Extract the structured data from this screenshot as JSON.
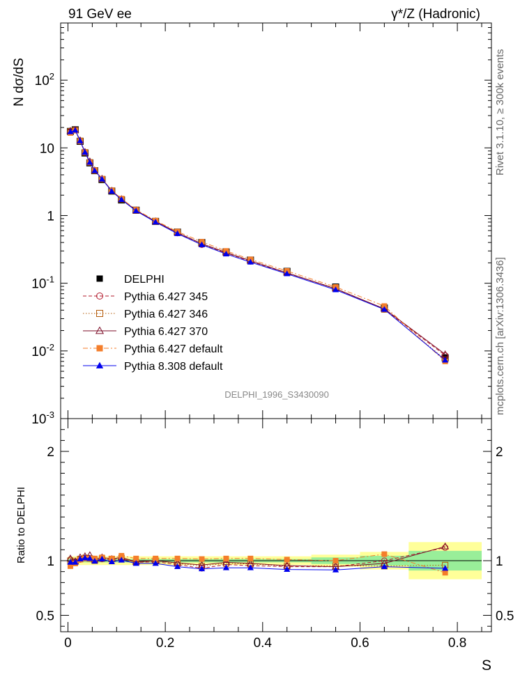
{
  "header": {
    "left_label": "91 GeV ee",
    "right_label": "γ*/Z (Hadronic)"
  },
  "side_labels": {
    "rivet": "Rivet 3.1.10, ≥ 300k events",
    "source": "mcplots.cern.ch [arXiv:1306.3436]"
  },
  "watermark": "DELPHI_1996_S3430090",
  "chart_data": [
    {
      "type": "line",
      "ylabel": "N dσ/dS",
      "yscale": "log",
      "ylim": [
        0.001,
        700
      ],
      "xlim": [
        -0.015,
        0.87
      ],
      "yticks": [
        {
          "value": 100,
          "label": "10^2"
        },
        {
          "value": 10,
          "label": "10"
        },
        {
          "value": 1,
          "label": "1"
        },
        {
          "value": 0.1,
          "label": "10^-1"
        },
        {
          "value": 0.01,
          "label": "10^-2"
        },
        {
          "value": 0.001,
          "label": "10^-3"
        }
      ],
      "x": [
        0.005,
        0.015,
        0.025,
        0.035,
        0.045,
        0.055,
        0.07,
        0.09,
        0.11,
        0.14,
        0.18,
        0.225,
        0.275,
        0.325,
        0.375,
        0.45,
        0.55,
        0.65,
        0.775
      ],
      "series": [
        {
          "name": "DELPHI",
          "color": "#000000",
          "marker": "square-filled",
          "line": "none",
          "values": [
            17.5,
            18.5,
            12.5,
            8.4,
            6.0,
            4.6,
            3.4,
            2.3,
            1.7,
            1.2,
            0.82,
            0.57,
            0.4,
            0.29,
            0.22,
            0.15,
            0.088,
            0.043,
            0.0079
          ]
        },
        {
          "name": "Pythia 6.427 345",
          "color": "#b2182b",
          "marker": "circle-open",
          "line": "dashed",
          "values": [
            17.7,
            18.2,
            12.6,
            8.6,
            6.1,
            4.6,
            3.45,
            2.32,
            1.74,
            1.18,
            0.81,
            0.55,
            0.37,
            0.28,
            0.21,
            0.142,
            0.083,
            0.041,
            0.0086
          ]
        },
        {
          "name": "Pythia 6.427 346",
          "color": "#b35806",
          "marker": "square-open",
          "line": "dotted",
          "values": [
            17.5,
            18.3,
            12.7,
            8.6,
            6.1,
            4.6,
            3.46,
            2.33,
            1.74,
            1.18,
            0.82,
            0.56,
            0.38,
            0.28,
            0.215,
            0.142,
            0.084,
            0.041,
            0.0075
          ]
        },
        {
          "name": "Pythia 6.427 370",
          "color": "#7b0b26",
          "marker": "triangle-open",
          "line": "solid",
          "values": [
            17.8,
            18.4,
            12.9,
            8.7,
            6.3,
            4.65,
            3.5,
            2.33,
            1.75,
            1.19,
            0.82,
            0.56,
            0.385,
            0.285,
            0.215,
            0.143,
            0.083,
            0.042,
            0.0089
          ]
        },
        {
          "name": "Pythia 6.427 default",
          "color": "#f47e2b",
          "marker": "square-filled",
          "line": "dashdot",
          "values": [
            16.6,
            18.0,
            12.6,
            8.6,
            6.1,
            4.7,
            3.5,
            2.35,
            1.78,
            1.22,
            0.84,
            0.58,
            0.41,
            0.3,
            0.225,
            0.152,
            0.088,
            0.046,
            0.007
          ]
        },
        {
          "name": "Pythia 8.308 default",
          "color": "#0000ee",
          "marker": "triangle-filled",
          "line": "solid",
          "values": [
            17.3,
            18.2,
            12.7,
            8.6,
            6.1,
            4.6,
            3.45,
            2.28,
            1.72,
            1.17,
            0.8,
            0.54,
            0.37,
            0.27,
            0.205,
            0.138,
            0.08,
            0.041,
            0.0073
          ]
        }
      ]
    },
    {
      "type": "line",
      "ylabel": "Ratio to DELPHI",
      "xlabel": "S",
      "ylim": [
        0.35,
        2.3
      ],
      "xlim": [
        -0.015,
        0.87
      ],
      "yticks": [
        0.5,
        1,
        2
      ],
      "xticks": [
        0,
        0.2,
        0.4,
        0.6,
        0.8
      ],
      "bands": {
        "stat_color": "#99ee99",
        "total_color": "#ffff99",
        "bins": [
          {
            "x0": 0.0,
            "x1": 0.5,
            "stat": [
              0.985,
              1.015
            ],
            "total": [
              0.96,
              1.04
            ]
          },
          {
            "x0": 0.5,
            "x1": 0.6,
            "stat": [
              0.97,
              1.03
            ],
            "total": [
              0.945,
              1.055
            ]
          },
          {
            "x0": 0.6,
            "x1": 0.7,
            "stat": [
              0.955,
              1.045
            ],
            "total": [
              0.92,
              1.08
            ]
          },
          {
            "x0": 0.7,
            "x1": 0.85,
            "stat": [
              0.91,
              1.09
            ],
            "total": [
              0.83,
              1.17
            ]
          }
        ]
      },
      "x": [
        0.005,
        0.015,
        0.025,
        0.035,
        0.045,
        0.055,
        0.07,
        0.09,
        0.11,
        0.14,
        0.18,
        0.225,
        0.275,
        0.325,
        0.375,
        0.45,
        0.55,
        0.65,
        0.775
      ],
      "series": [
        {
          "name": "Pythia 6.427 345",
          "values": [
            1.01,
            0.985,
            1.01,
            1.025,
            1.02,
            1.0,
            1.015,
            1.01,
            1.02,
            0.985,
            0.99,
            0.965,
            0.93,
            0.965,
            0.955,
            0.945,
            0.945,
            1.0,
            1.12
          ]
        },
        {
          "name": "Pythia 6.427 346",
          "values": [
            1.0,
            0.99,
            1.015,
            1.025,
            1.02,
            1.0,
            1.02,
            1.015,
            1.025,
            0.985,
            1.0,
            0.975,
            0.95,
            0.975,
            0.97,
            0.95,
            0.955,
            0.95,
            0.96
          ]
        },
        {
          "name": "Pythia 6.427 370",
          "values": [
            1.02,
            0.995,
            1.03,
            1.04,
            1.05,
            1.01,
            1.03,
            1.015,
            1.03,
            0.99,
            1.0,
            0.98,
            0.96,
            0.985,
            0.975,
            0.955,
            0.945,
            0.975,
            1.13
          ]
        },
        {
          "name": "Pythia 6.427 default",
          "values": [
            0.95,
            0.975,
            1.01,
            1.02,
            1.02,
            1.02,
            1.03,
            1.02,
            1.045,
            1.02,
            1.02,
            1.02,
            1.015,
            1.02,
            1.02,
            1.01,
            1.0,
            1.06,
            0.89
          ]
        },
        {
          "name": "Pythia 8.308 default",
          "values": [
            0.985,
            0.985,
            1.015,
            1.025,
            1.02,
            0.995,
            1.015,
            0.99,
            1.005,
            0.975,
            0.975,
            0.945,
            0.925,
            0.935,
            0.935,
            0.92,
            0.915,
            0.945,
            0.93
          ]
        }
      ]
    }
  ]
}
